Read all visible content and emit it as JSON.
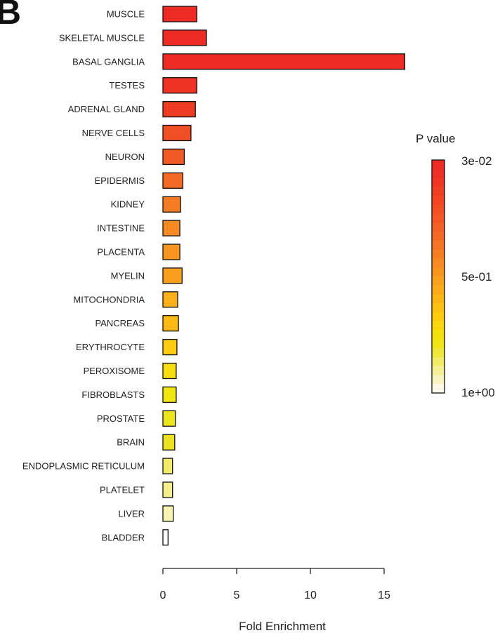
{
  "panel_label": "B",
  "chart_data": {
    "type": "bar",
    "orientation": "horizontal",
    "categories": [
      "MUSCLE",
      "SKELETAL MUSCLE",
      "BASAL GANGLIA",
      "TESTES",
      "ADRENAL GLAND",
      "NERVE CELLS",
      "NEURON",
      "EPIDERMIS",
      "KIDNEY",
      "INTESTINE",
      "PLACENTA",
      "MYELIN",
      "MITOCHONDRIA",
      "PANCREAS",
      "ERYTHROCYTE",
      "PEROXISOME",
      "FIBROBLASTS",
      "PROSTATE",
      "BRAIN",
      "ENDOPLASMIC RETICULUM",
      "PLATELET",
      "LIVER",
      "BLADDER"
    ],
    "values": [
      2.3,
      2.95,
      16.4,
      2.3,
      2.2,
      1.9,
      1.45,
      1.35,
      1.2,
      1.15,
      1.15,
      1.3,
      1.0,
      1.05,
      0.95,
      0.9,
      0.9,
      0.85,
      0.8,
      0.65,
      0.65,
      0.7,
      0.35
    ],
    "bar_colors": [
      "#ee2a24",
      "#ee2a24",
      "#ee2a24",
      "#ee3324",
      "#ee3b24",
      "#f04e24",
      "#f15a25",
      "#f26a26",
      "#f47c24",
      "#f68a22",
      "#f79520",
      "#f8a01e",
      "#fab01a",
      "#fbbb14",
      "#fdcc10",
      "#f6de10",
      "#f0e610",
      "#ede51b",
      "#ebe224",
      "#f1ec68",
      "#f4ef8c",
      "#f9f4b4",
      "#ffffff"
    ],
    "xlabel": "Fold Enrichment",
    "xlim": [
      0,
      15
    ],
    "xticks": [
      0,
      5,
      10,
      15
    ],
    "grid": false,
    "legend": {
      "title": "P value",
      "placement": "right",
      "tick_labels": [
        "3e-02",
        "5e-01",
        "1e+00"
      ],
      "gradient_top_to_bottom": [
        "#ee2a24",
        "#ef3024",
        "#ef3724",
        "#f03e24",
        "#f14624",
        "#f24e24",
        "#f25725",
        "#f36025",
        "#f46a26",
        "#f57426",
        "#f67f24",
        "#f78a22",
        "#f8951f",
        "#f9a01c",
        "#faab19",
        "#fbb616",
        "#fcc112",
        "#fdcc0f",
        "#f9d80f",
        "#f4e20f",
        "#f0e617",
        "#efe73a",
        "#f1ec68",
        "#f4f095",
        "#f8f5c0",
        "#fdfbe8"
      ]
    }
  }
}
